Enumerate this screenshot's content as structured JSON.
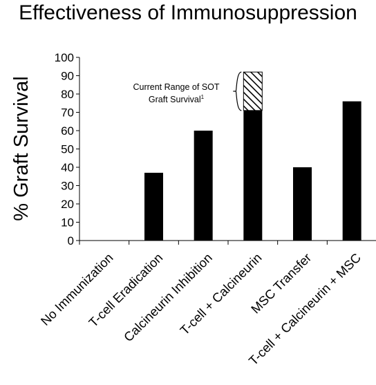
{
  "chart_data": {
    "type": "bar",
    "title": "Effectiveness of Immunosuppression",
    "xlabel": "",
    "ylabel": "% Graft Survival",
    "ylim": [
      0,
      100
    ],
    "yticks": [
      0,
      10,
      20,
      30,
      40,
      50,
      60,
      70,
      80,
      90,
      100
    ],
    "grid": false,
    "legend": "none",
    "categories": [
      "No Immunization",
      "T-cell Eradication",
      "Calcineurin Inhibition",
      "T-cell + Calcineurin",
      "MSC Transfer",
      "T-cell + Calcineurin + MSC"
    ],
    "values": [
      0,
      37,
      60,
      71,
      40,
      76
    ],
    "bar_color": "#000000",
    "annotation": {
      "line1": "Current Range of SOT",
      "line2": "Graft Survival",
      "superscript": "1",
      "category_index": 3,
      "range": [
        71,
        92
      ],
      "pattern": "diagonal-hatch"
    }
  }
}
